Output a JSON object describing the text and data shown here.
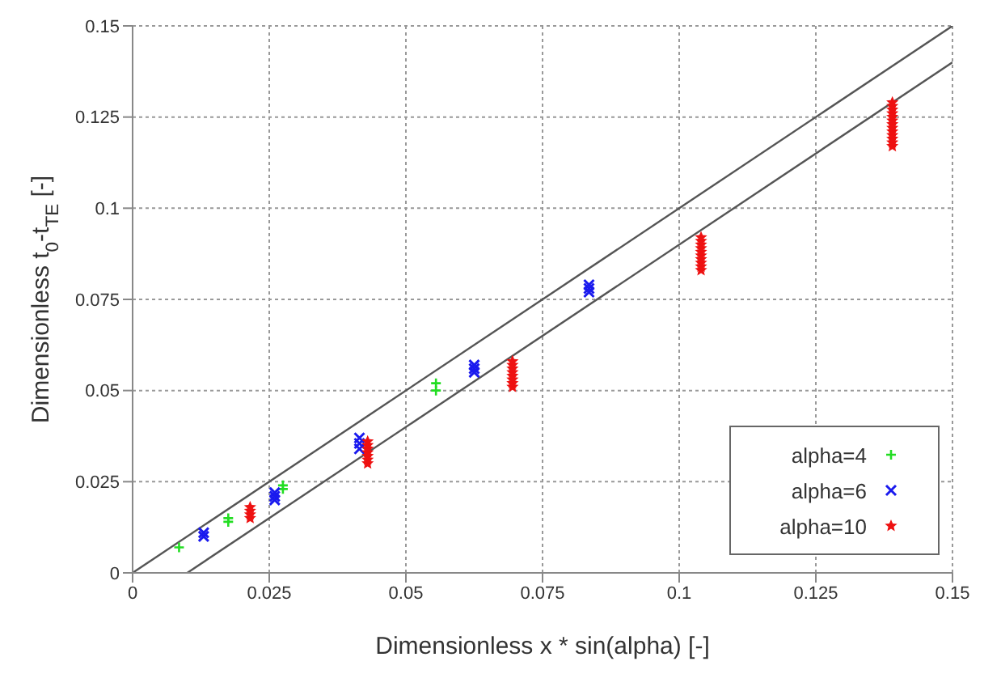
{
  "chart_data": {
    "type": "scatter",
    "xlabel": "Dimensionless x * sin(alpha) [-]",
    "ylabel": "Dimensionless t$_{0}$-t$_{TE}$ [-]",
    "xlim": [
      0,
      0.15
    ],
    "ylim": [
      0,
      0.15
    ],
    "xticks": [
      0,
      0.025,
      0.05,
      0.075,
      0.1,
      0.125,
      0.15
    ],
    "yticks": [
      0,
      0.025,
      0.05,
      0.075,
      0.1,
      0.125,
      0.15
    ],
    "grid": true,
    "legend": "bottom right",
    "series": [
      {
        "type": "line",
        "color": "#555555",
        "x": [
          0,
          0.15
        ],
        "values": [
          0,
          0.15
        ],
        "marker": "none"
      },
      {
        "type": "line",
        "color": "#555555",
        "x": [
          0.01,
          0.15
        ],
        "values": [
          0,
          0.14
        ],
        "marker": "none"
      },
      {
        "name": "alpha=4",
        "color": "#22dd22",
        "marker": "cross",
        "x": [
          0.0085,
          0.0175,
          0.0175,
          0.0275,
          0.0275,
          0.042,
          0.0555,
          0.0555
        ],
        "values": [
          0.007,
          0.014,
          0.015,
          0.023,
          0.024,
          null,
          0.05,
          0.052
        ]
      },
      {
        "name": "alpha=6",
        "color": "#1a1aee",
        "marker": "x",
        "x": [
          0.013,
          0.013,
          0.026,
          0.026,
          0.026,
          0.0415,
          0.0415,
          0.0415,
          0.0625,
          0.0625,
          0.0625,
          0.0835,
          0.0835,
          0.0835
        ],
        "values": [
          0.01,
          0.011,
          0.02,
          0.021,
          0.022,
          0.034,
          0.0355,
          0.037,
          0.055,
          0.056,
          0.057,
          0.077,
          0.078,
          0.079
        ]
      },
      {
        "name": "alpha=10",
        "color": "#ee1111",
        "marker": "star",
        "x": [
          0.0215,
          0.0215,
          0.0215,
          0.0215,
          0.043,
          0.043,
          0.043,
          0.043,
          0.043,
          0.043,
          0.043,
          0.0695,
          0.0695,
          0.0695,
          0.0695,
          0.0695,
          0.0695,
          0.0695,
          0.0695,
          0.104,
          0.104,
          0.104,
          0.104,
          0.104,
          0.104,
          0.104,
          0.104,
          0.104,
          0.104,
          0.139,
          0.139,
          0.139,
          0.139,
          0.139,
          0.139,
          0.139,
          0.139,
          0.139,
          0.139,
          0.139,
          0.139,
          0.139
        ],
        "values": [
          0.015,
          0.016,
          0.017,
          0.018,
          0.03,
          0.031,
          0.032,
          0.033,
          0.034,
          0.035,
          0.036,
          0.051,
          0.052,
          0.053,
          0.054,
          0.055,
          0.056,
          0.057,
          0.058,
          0.083,
          0.084,
          0.085,
          0.086,
          0.087,
          0.088,
          0.089,
          0.09,
          0.091,
          0.092,
          0.117,
          0.118,
          0.119,
          0.12,
          0.121,
          0.122,
          0.123,
          0.124,
          0.125,
          0.126,
          0.127,
          0.128,
          0.129
        ]
      }
    ]
  }
}
